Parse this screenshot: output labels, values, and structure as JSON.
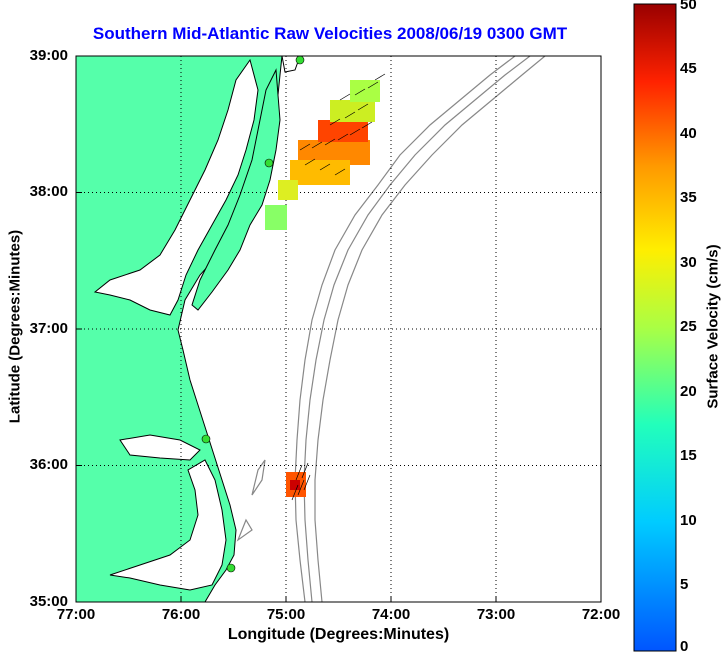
{
  "title": "Southern Mid-Atlantic Raw Velocities 2008/06/19 0300 GMT",
  "xlabel": "Longitude (Degrees:Minutes)",
  "ylabel": "Latitude (Degrees:Minutes)",
  "xticks": [
    "77:00",
    "76:00",
    "75:00",
    "74:00",
    "73:00",
    "72:00"
  ],
  "yticks": [
    "39:00",
    "38:00",
    "37:00",
    "36:00",
    "35:00"
  ],
  "colorbar": {
    "label": "Surface Velocity (cm/s)",
    "ticks": [
      "50",
      "45",
      "40",
      "35",
      "30",
      "25",
      "20",
      "15",
      "10",
      "5",
      "0"
    ]
  },
  "colors": {
    "land": "#55ffaa",
    "title": "#0000ff",
    "contour": "#888888",
    "station": "#33dd33"
  },
  "map": {
    "lon_range": [
      -77,
      -72
    ],
    "lat_range": [
      35,
      39
    ],
    "grid": "dotted"
  }
}
